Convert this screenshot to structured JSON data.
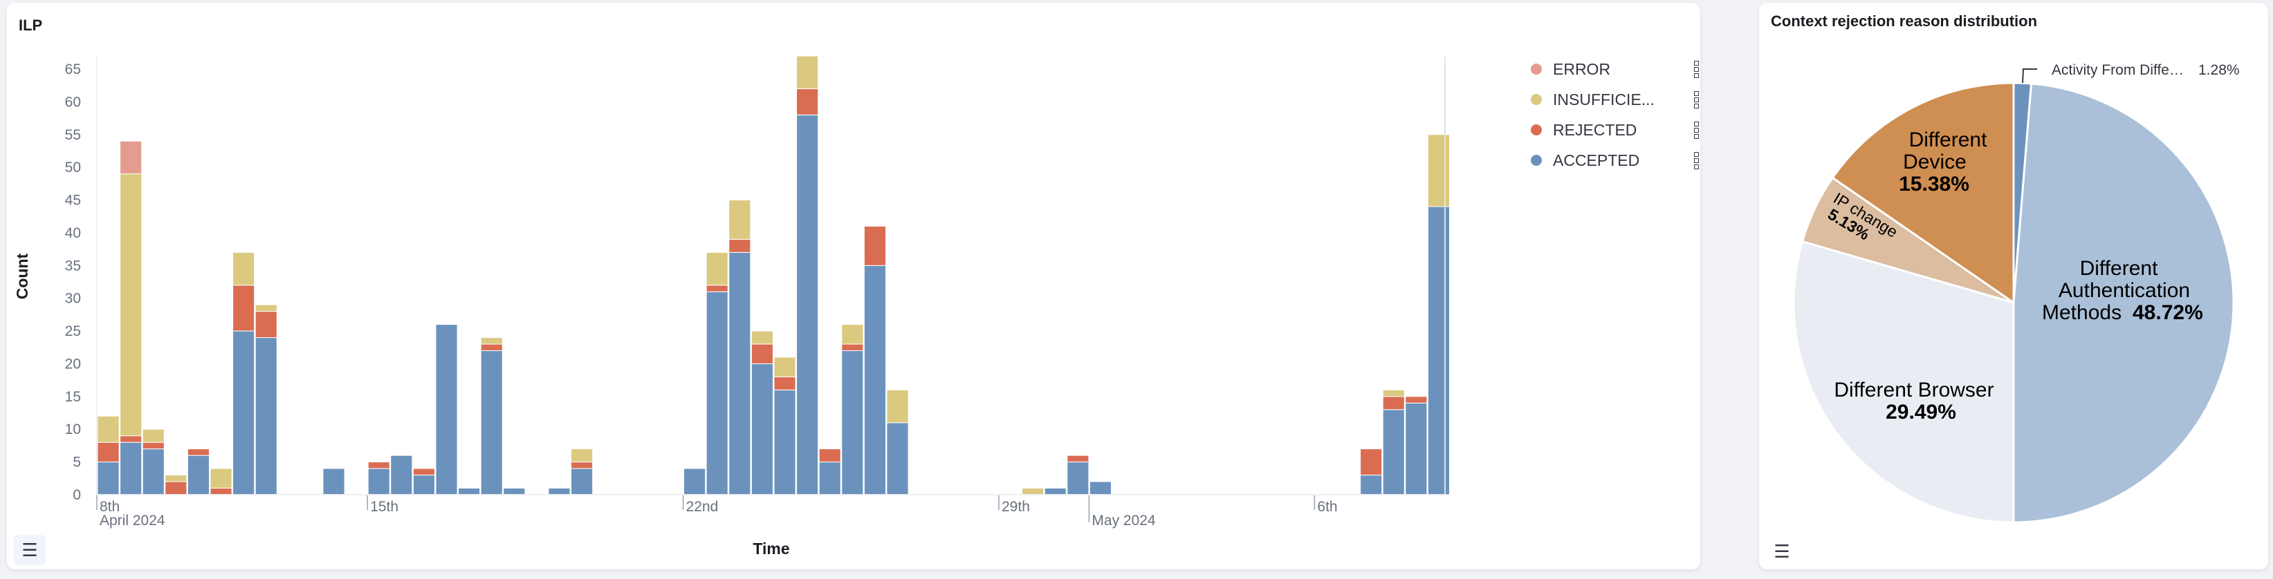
{
  "left_panel": {
    "title": "ILP",
    "legend": [
      {
        "label": "ERROR",
        "color": "#e39c8d",
        "menu_icon": "more-vertical-icon"
      },
      {
        "label": "INSUFFICIE...",
        "color": "#dbc97f",
        "menu_icon": "more-vertical-icon"
      },
      {
        "label": "REJECTED",
        "color": "#da6c52",
        "menu_icon": "more-vertical-icon"
      },
      {
        "label": "ACCEPTED",
        "color": "#6a92bc",
        "menu_icon": "more-vertical-icon"
      }
    ],
    "list_icon": "list-icon"
  },
  "right_panel": {
    "title": "Context rejection reason distribution",
    "list_icon": "list-icon"
  },
  "chart_data": [
    {
      "type": "bar",
      "stacked": true,
      "title": "ILP",
      "xlabel": "Time",
      "ylabel": "Count",
      "ylim": [
        0,
        65
      ],
      "y_ticks": [
        0,
        5,
        10,
        15,
        20,
        25,
        30,
        35,
        40,
        45,
        50,
        55,
        60,
        65
      ],
      "x_ticks": [
        {
          "label": "8th",
          "sublabel": "April 2024",
          "bin": 0
        },
        {
          "label": "15th",
          "sublabel": "",
          "bin": 12
        },
        {
          "label": "22nd",
          "sublabel": "",
          "bin": 26
        },
        {
          "label": "29th",
          "sublabel": "",
          "bin": 40
        },
        {
          "label": "",
          "sublabel": "May 2024",
          "bin": 44
        },
        {
          "label": "6th",
          "sublabel": "",
          "bin": 54
        }
      ],
      "grid": false,
      "legend": "right",
      "series": [
        {
          "name": "ACCEPTED",
          "color": "#6a92bc",
          "values": [
            5,
            8,
            7,
            0,
            6,
            0,
            25,
            24,
            0,
            0,
            4,
            0,
            4,
            6,
            3,
            26,
            1,
            22,
            1,
            0,
            1,
            4,
            0,
            0,
            0,
            0,
            4,
            31,
            37,
            20,
            16,
            58,
            5,
            22,
            35,
            11,
            0,
            0,
            0,
            0,
            0,
            0,
            1,
            5,
            2,
            0,
            0,
            0,
            0,
            0,
            0,
            0,
            0,
            0,
            0,
            0,
            3,
            13,
            14,
            44
          ]
        },
        {
          "name": "REJECTED",
          "color": "#da6c52",
          "values": [
            3,
            1,
            1,
            2,
            1,
            1,
            7,
            4,
            0,
            0,
            0,
            0,
            1,
            0,
            1,
            0,
            0,
            1,
            0,
            0,
            0,
            1,
            0,
            0,
            0,
            0,
            0,
            1,
            2,
            3,
            2,
            4,
            2,
            1,
            6,
            0,
            0,
            0,
            0,
            0,
            0,
            0,
            0,
            1,
            0,
            0,
            0,
            0,
            0,
            0,
            0,
            0,
            0,
            0,
            0,
            0,
            4,
            2,
            1,
            0
          ]
        },
        {
          "name": "INSUFFICIE...",
          "color": "#dbc97f",
          "values": [
            4,
            40,
            2,
            1,
            0,
            3,
            5,
            1,
            0,
            0,
            0,
            0,
            0,
            0,
            0,
            0,
            0,
            1,
            0,
            0,
            0,
            2,
            0,
            0,
            0,
            0,
            0,
            5,
            6,
            2,
            3,
            5,
            0,
            3,
            0,
            5,
            0,
            0,
            0,
            0,
            0,
            1,
            0,
            0,
            0,
            0,
            0,
            0,
            0,
            0,
            0,
            0,
            0,
            0,
            0,
            0,
            0,
            1,
            0,
            11
          ]
        },
        {
          "name": "ERROR",
          "color": "#e39c8d",
          "values": [
            0,
            5,
            0,
            0,
            0,
            0,
            0,
            0,
            0,
            0,
            0,
            0,
            0,
            0,
            0,
            0,
            0,
            0,
            0,
            0,
            0,
            0,
            0,
            0,
            0,
            0,
            0,
            0,
            0,
            0,
            0,
            0,
            0,
            0,
            0,
            0,
            0,
            0,
            0,
            0,
            0,
            0,
            0,
            0,
            0,
            0,
            0,
            0,
            0,
            0,
            0,
            0,
            0,
            0,
            0,
            0,
            0,
            0,
            0,
            0
          ]
        }
      ]
    },
    {
      "type": "pie",
      "title": "Context rejection reason distribution",
      "slices": [
        {
          "label": "Activity From Diffe…",
          "label_lines": [
            "Activity From Diffe…"
          ],
          "value": 1.28,
          "pct": "1.28%",
          "color": "#6a92bc"
        },
        {
          "label": "Different Authentication Methods",
          "label_lines": [
            "Different",
            "Authentication",
            "Methods"
          ],
          "value": 48.72,
          "pct": "48.72%",
          "color": "#aac0d8"
        },
        {
          "label": "Different Browser",
          "label_lines": [
            "Different Browser"
          ],
          "value": 29.49,
          "pct": "29.49%",
          "color": "#e9edf3"
        },
        {
          "label": "IP change",
          "label_lines": [
            "IP change"
          ],
          "value": 5.13,
          "pct": "5.13%",
          "color": "#dcbda0"
        },
        {
          "label": "Different Device",
          "label_lines": [
            "Different",
            "Device"
          ],
          "value": 15.38,
          "pct": "15.38%",
          "color": "#cf8e52"
        }
      ]
    }
  ]
}
